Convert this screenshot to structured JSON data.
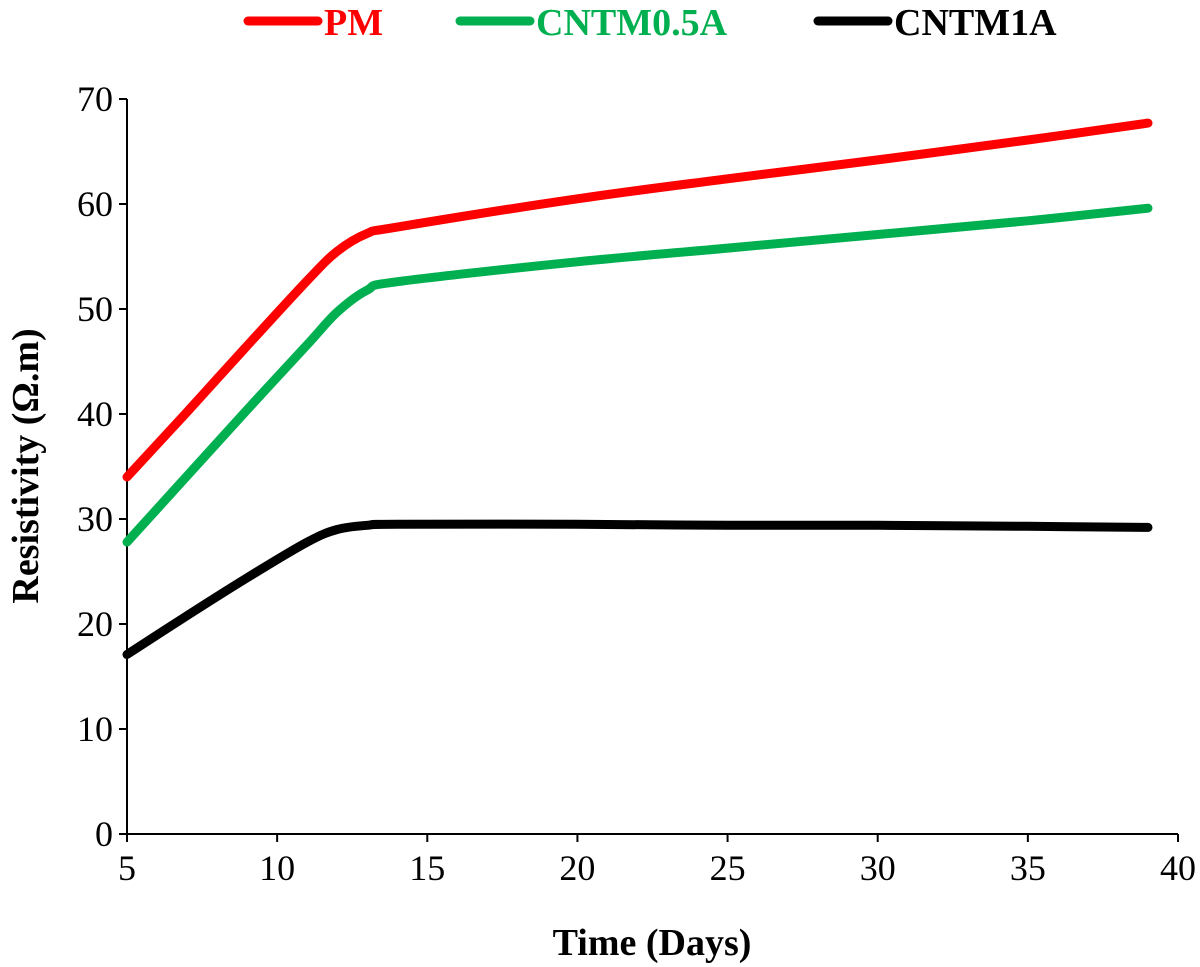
{
  "chart_data": {
    "type": "line",
    "title": "",
    "xlabel": "Time (Days)",
    "ylabel": "Resistivity (Ω.m)",
    "xlim": [
      5,
      40
    ],
    "ylim": [
      0,
      70
    ],
    "xticks": [
      5,
      10,
      15,
      20,
      25,
      30,
      35,
      40
    ],
    "yticks": [
      0,
      10,
      20,
      30,
      40,
      50,
      60,
      70
    ],
    "grid": false,
    "legend_position": "top",
    "series": [
      {
        "name": "PM",
        "color": "#ff0000",
        "points": [
          [
            5,
            34
          ],
          [
            7,
            40.2
          ],
          [
            9,
            46.5
          ],
          [
            11,
            52.7
          ],
          [
            12,
            55.5
          ],
          [
            13,
            57.2
          ],
          [
            14,
            57.8
          ],
          [
            20,
            60.5
          ],
          [
            25,
            62.4
          ],
          [
            30,
            64.2
          ],
          [
            35,
            66.1
          ],
          [
            39,
            67.7
          ]
        ]
      },
      {
        "name": "CNTM0.5A",
        "color": "#00b050",
        "points": [
          [
            5,
            27.8
          ],
          [
            7,
            34.1
          ],
          [
            9,
            40.4
          ],
          [
            11,
            46.6
          ],
          [
            12,
            49.7
          ],
          [
            13,
            51.8
          ],
          [
            14,
            52.6
          ],
          [
            20,
            54.5
          ],
          [
            25,
            55.8
          ],
          [
            30,
            57.1
          ],
          [
            35,
            58.4
          ],
          [
            39,
            59.6
          ]
        ]
      },
      {
        "name": "CNTM1A",
        "color": "#000000",
        "points": [
          [
            5,
            17.1
          ],
          [
            7,
            20.8
          ],
          [
            9,
            24.4
          ],
          [
            11,
            27.8
          ],
          [
            12,
            29.0
          ],
          [
            13,
            29.4
          ],
          [
            14,
            29.5
          ],
          [
            20,
            29.5
          ],
          [
            25,
            29.4
          ],
          [
            30,
            29.4
          ],
          [
            35,
            29.3
          ],
          [
            39,
            29.2
          ]
        ]
      }
    ]
  }
}
